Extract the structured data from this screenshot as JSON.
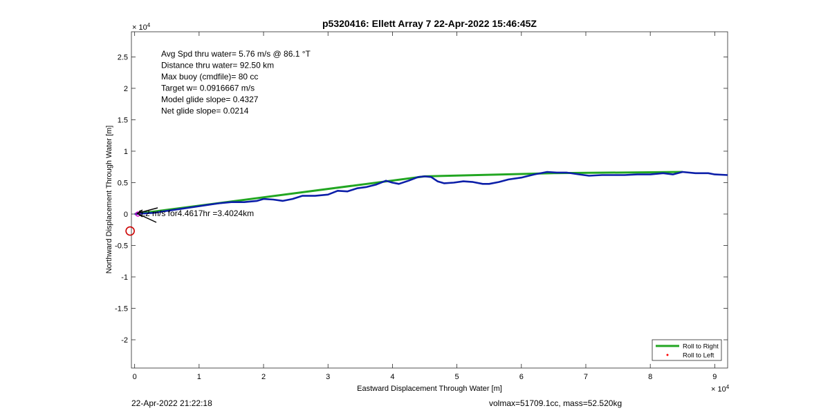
{
  "chart_data": {
    "type": "line",
    "title": "p5320416: Ellett Array 7 22-Apr-2022 15:46:45Z",
    "xlabel": "Eastward Displacement Through Water [m]",
    "ylabel": "Northward Displacement Through Water [m]",
    "x_exponent_label": "× 10",
    "x_exponent_power": "4",
    "y_exponent_label": "× 10",
    "y_exponent_power": "4",
    "xlim": [
      -0.05,
      9.2
    ],
    "ylim": [
      -2.45,
      2.9
    ],
    "xticks": [
      0,
      1,
      2,
      3,
      4,
      5,
      6,
      7,
      8,
      9
    ],
    "xtick_labels": [
      "0",
      "1",
      "2",
      "3",
      "4",
      "5",
      "6",
      "7",
      "8",
      "9"
    ],
    "yticks": [
      2.5,
      2,
      1.5,
      1,
      0.5,
      0,
      -0.5,
      -1,
      -1.5,
      -2
    ],
    "ytick_labels": [
      "2.5",
      "2",
      "1.5",
      "1",
      "0.5",
      "0",
      "-0.5",
      "-1",
      "-1.5",
      "-2"
    ],
    "grid": false,
    "legend_position": "bottom-right",
    "legend": [
      "Roll to Right",
      "Roll to Left"
    ],
    "annotations": [
      "Avg Spd thru water=  5.76 m/s @  86.1 °T",
      "Distance thru water= 92.50 km",
      "Max buoy (cmdfile)= 80 cc",
      "Target w= 0.0916667 m/s",
      "Model glide slope= 0.4327",
      "Net glide slope= 0.0214"
    ],
    "current_label": "0.2 m/s for4.4617hr =3.4024km",
    "series": [
      {
        "name": "Roll to Right",
        "color": "#22a622",
        "x": [
          0,
          4.5,
          6.5,
          8.5
        ],
        "y": [
          0,
          0.6,
          0.65,
          0.67
        ]
      },
      {
        "name": "Roll to Left",
        "color": "#ff0000",
        "x": [],
        "y": []
      },
      {
        "color": "#0b1ea8",
        "x": [
          0,
          0.3,
          0.5,
          0.7,
          0.9,
          1.1,
          1.3,
          1.5,
          1.7,
          1.9,
          2.0,
          2.15,
          2.3,
          2.45,
          2.6,
          2.8,
          3.0,
          3.15,
          3.3,
          3.45,
          3.6,
          3.75,
          3.9,
          4.0,
          4.1,
          4.25,
          4.4,
          4.5,
          4.6,
          4.7,
          4.8,
          4.95,
          5.1,
          5.25,
          5.4,
          5.5,
          5.65,
          5.8,
          6.0,
          6.2,
          6.4,
          6.55,
          6.7,
          6.9,
          7.05,
          7.25,
          7.4,
          7.6,
          7.8,
          8.0,
          8.2,
          8.35,
          8.5,
          8.7,
          8.9,
          9.0,
          9.2
        ],
        "y": [
          0,
          0.02,
          0.05,
          0.08,
          0.11,
          0.14,
          0.17,
          0.19,
          0.19,
          0.21,
          0.24,
          0.23,
          0.21,
          0.24,
          0.29,
          0.29,
          0.31,
          0.37,
          0.36,
          0.41,
          0.43,
          0.47,
          0.53,
          0.5,
          0.48,
          0.53,
          0.59,
          0.6,
          0.59,
          0.52,
          0.49,
          0.5,
          0.52,
          0.51,
          0.48,
          0.48,
          0.51,
          0.55,
          0.58,
          0.63,
          0.67,
          0.66,
          0.66,
          0.63,
          0.61,
          0.62,
          0.62,
          0.62,
          0.63,
          0.63,
          0.65,
          0.63,
          0.67,
          0.65,
          0.65,
          0.63,
          0.62
        ]
      }
    ],
    "markers": {
      "red_circle": {
        "color": "#cc0000",
        "x": -0.07,
        "y": -0.27
      },
      "magenta_start": {
        "color": "#cc00cc",
        "x": 0.05,
        "y": 0
      }
    }
  },
  "footer": {
    "date": "22-Apr-2022 21:22:18",
    "volmass": "volmax=51709.1cc, mass=52.520kg"
  }
}
